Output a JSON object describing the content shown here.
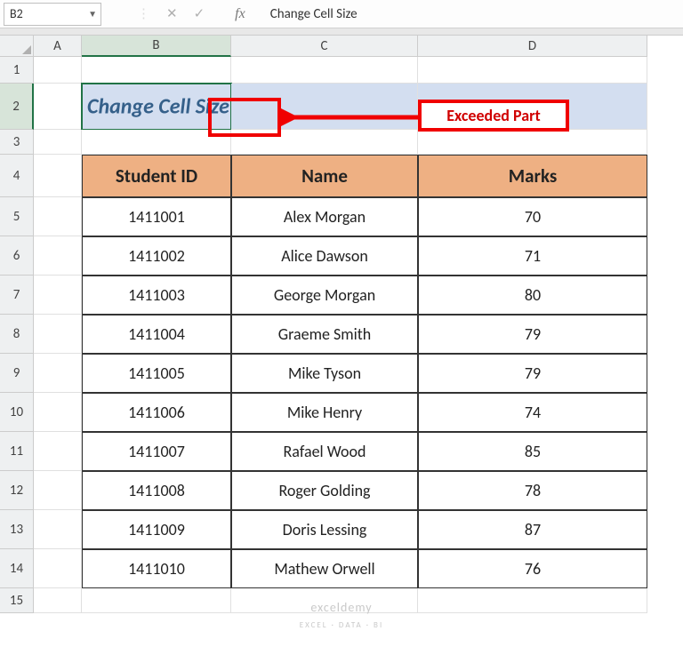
{
  "nameBox": {
    "ref": "B2"
  },
  "formulaBar": {
    "value": "Change Cell Size"
  },
  "columns": [
    "A",
    "B",
    "C",
    "D"
  ],
  "colWidths": {
    "rowHdr": 38,
    "A": 54,
    "B": 168,
    "C": 210,
    "D": 258
  },
  "rowNumbers": [
    1,
    2,
    3,
    4,
    5,
    6,
    7,
    8,
    9,
    10,
    11,
    12,
    13,
    14,
    15
  ],
  "selected": {
    "col": "B",
    "row": 2
  },
  "b2": {
    "text": "Change Cell Size"
  },
  "table": {
    "headers": [
      "Student ID",
      "Name",
      "Marks"
    ],
    "rows": [
      [
        "1411001",
        "Alex Morgan",
        "70"
      ],
      [
        "1411002",
        "Alice Dawson",
        "71"
      ],
      [
        "1411003",
        "George Morgan",
        "80"
      ],
      [
        "1411004",
        "Graeme Smith",
        "79"
      ],
      [
        "1411005",
        "Mike Tyson",
        "79"
      ],
      [
        "1411006",
        "Mike Henry",
        "74"
      ],
      [
        "1411007",
        "Rafael Wood",
        "85"
      ],
      [
        "1411008",
        "Roger Golding",
        "78"
      ],
      [
        "1411009",
        "Doris Lessing",
        "87"
      ],
      [
        "1411010",
        "Mathew Orwell",
        "76"
      ]
    ],
    "headerBg": "#eeb083",
    "borderColor": "#333333"
  },
  "annotation": {
    "label": "Exceeded Part",
    "boxColor": "#f00000",
    "arrowColor": "#f00000"
  },
  "watermark": {
    "main": "exceldemy",
    "sub": "EXCEL · DATA · BI"
  },
  "colors": {
    "selectedGreen": "#217346",
    "mergedBlue": "#d3def0",
    "titleText": "#35608a"
  }
}
